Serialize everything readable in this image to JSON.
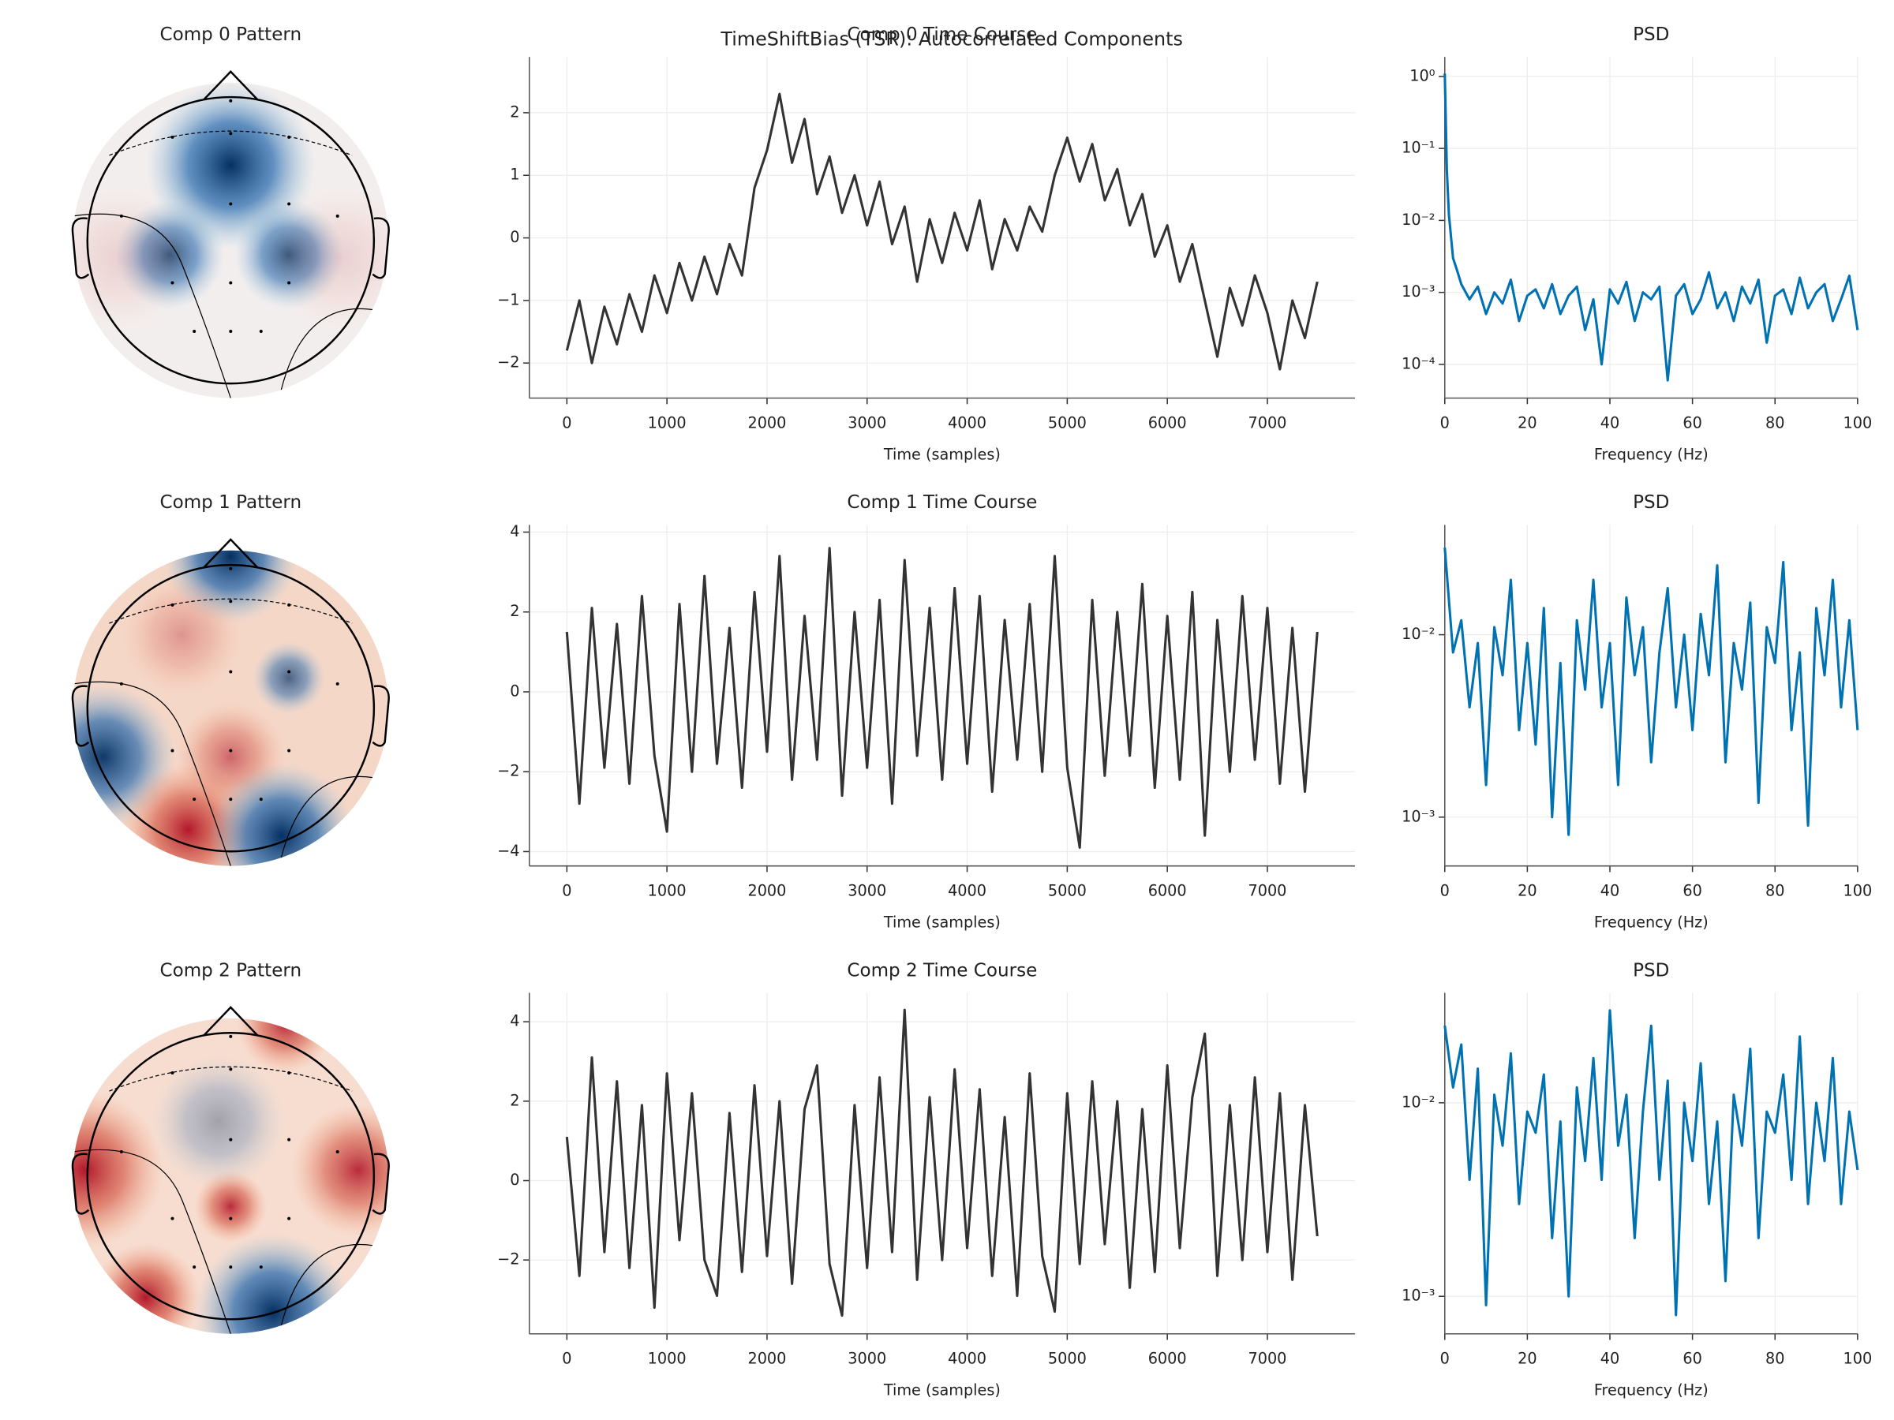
{
  "title": "TimeShiftBias (TSR): Autocorrelated Components",
  "chart_data": [
    {
      "type": "topomap",
      "title": "Comp 0 Pattern"
    },
    {
      "type": "line",
      "title": "Comp 0 Time Course",
      "xlabel": "Time (samples)",
      "color": "#333333",
      "grid": true,
      "x": [
        0,
        125,
        250,
        375,
        500,
        625,
        750,
        875,
        1000,
        1125,
        1250,
        1375,
        1500,
        1625,
        1750,
        1875,
        2000,
        2125,
        2250,
        2375,
        2500,
        2625,
        2750,
        2875,
        3000,
        3125,
        3250,
        3375,
        3500,
        3625,
        3750,
        3875,
        4000,
        4125,
        4250,
        4375,
        4500,
        4625,
        4750,
        4875,
        5000,
        5125,
        5250,
        5375,
        5500,
        5625,
        5750,
        5875,
        6000,
        6125,
        6250,
        6375,
        6500,
        6625,
        6750,
        6875,
        7000,
        7125,
        7250,
        7375,
        7499
      ],
      "values": [
        -1.8,
        -1.0,
        -2.0,
        -1.1,
        -1.7,
        -0.9,
        -1.5,
        -0.6,
        -1.2,
        -0.4,
        -1.0,
        -0.3,
        -0.9,
        -0.1,
        -0.6,
        0.8,
        1.4,
        2.3,
        1.2,
        1.9,
        0.7,
        1.3,
        0.4,
        1.0,
        0.2,
        0.9,
        -0.1,
        0.5,
        -0.7,
        0.3,
        -0.4,
        0.4,
        -0.2,
        0.6,
        -0.5,
        0.3,
        -0.2,
        0.5,
        0.1,
        1.0,
        1.6,
        0.9,
        1.5,
        0.6,
        1.1,
        0.2,
        0.7,
        -0.3,
        0.2,
        -0.7,
        -0.1,
        -1.0,
        -1.9,
        -0.8,
        -1.4,
        -0.6,
        -1.2,
        -2.1,
        -1.0,
        -1.6,
        -0.7
      ],
      "xlim": [
        -375,
        7875
      ],
      "xticks": [
        0,
        1000,
        2000,
        3000,
        4000,
        5000,
        6000,
        7000
      ],
      "ylim": [
        -2.56,
        2.89
      ],
      "yticks": [
        {
          "value": -2,
          "label": "−2"
        },
        {
          "value": -1,
          "label": "−1"
        },
        0,
        1,
        2
      ]
    },
    {
      "type": "line",
      "title": "PSD",
      "xlabel": "Frequency (Hz)",
      "color": "#0072b2",
      "grid": true,
      "yscale": "log",
      "x": [
        0,
        0.5,
        1,
        1.5,
        2,
        3,
        4,
        6,
        8,
        10,
        12,
        14,
        16,
        18,
        20,
        22,
        24,
        26,
        28,
        30,
        32,
        34,
        36,
        38,
        40,
        42,
        44,
        46,
        48,
        50,
        52,
        54,
        56,
        58,
        60,
        62,
        64,
        66,
        68,
        70,
        72,
        74,
        76,
        78,
        80,
        82,
        84,
        86,
        88,
        90,
        92,
        94,
        96,
        98,
        100
      ],
      "values": [
        1.1,
        0.05,
        0.012,
        0.006,
        0.003,
        0.002,
        0.0013,
        0.0008,
        0.0012,
        0.0005,
        0.001,
        0.0007,
        0.0015,
        0.0004,
        0.0009,
        0.0011,
        0.0006,
        0.0013,
        0.0005,
        0.0009,
        0.0012,
        0.0003,
        0.0008,
        0.0001,
        0.0011,
        0.0007,
        0.0014,
        0.0004,
        0.001,
        0.0008,
        0.0012,
        6e-05,
        0.0009,
        0.0013,
        0.0005,
        0.0008,
        0.0019,
        0.0006,
        0.001,
        0.0004,
        0.0012,
        0.0007,
        0.0015,
        0.0002,
        0.0009,
        0.0011,
        0.0005,
        0.0016,
        0.0006,
        0.001,
        0.0013,
        0.0004,
        0.0008,
        0.0017,
        0.0003
      ],
      "xlim": [
        0,
        100
      ],
      "xticks": [
        0,
        20,
        40,
        60,
        80,
        100
      ],
      "ylim": [
        3.4e-05,
        1.86
      ],
      "yticks": [
        {
          "value": 1,
          "label": "10⁰"
        },
        {
          "value": 0.1,
          "label": "10⁻¹"
        },
        {
          "value": 0.01,
          "label": "10⁻²"
        },
        {
          "value": 0.001,
          "label": "10⁻³"
        },
        {
          "value": 0.0001,
          "label": "10⁻⁴"
        }
      ]
    },
    {
      "type": "topomap",
      "title": "Comp 1 Pattern"
    },
    {
      "type": "line",
      "title": "Comp 1 Time Course",
      "xlabel": "Time (samples)",
      "color": "#333333",
      "grid": true,
      "x": [
        0,
        125,
        250,
        375,
        500,
        625,
        750,
        875,
        1000,
        1125,
        1250,
        1375,
        1500,
        1625,
        1750,
        1875,
        2000,
        2125,
        2250,
        2375,
        2500,
        2625,
        2750,
        2875,
        3000,
        3125,
        3250,
        3375,
        3500,
        3625,
        3750,
        3875,
        4000,
        4125,
        4250,
        4375,
        4500,
        4625,
        4750,
        4875,
        5000,
        5125,
        5250,
        5375,
        5500,
        5625,
        5750,
        5875,
        6000,
        6125,
        6250,
        6375,
        6500,
        6625,
        6750,
        6875,
        7000,
        7125,
        7250,
        7375,
        7499
      ],
      "values": [
        1.5,
        -2.8,
        2.1,
        -1.9,
        1.7,
        -2.3,
        2.4,
        -1.6,
        -3.5,
        2.2,
        -2.0,
        2.9,
        -1.8,
        1.6,
        -2.4,
        2.5,
        -1.5,
        3.4,
        -2.2,
        1.9,
        -1.7,
        3.6,
        -2.6,
        2.0,
        -1.9,
        2.3,
        -2.8,
        3.3,
        -1.6,
        2.1,
        -2.2,
        2.6,
        -1.8,
        2.4,
        -2.5,
        1.8,
        -1.7,
        2.2,
        -2.0,
        3.4,
        -1.9,
        -3.9,
        2.3,
        -2.1,
        2.0,
        -1.6,
        2.7,
        -2.4,
        1.9,
        -2.2,
        2.5,
        -3.6,
        1.8,
        -2.0,
        2.4,
        -1.7,
        2.1,
        -2.3,
        1.6,
        -2.5,
        1.5
      ],
      "xlim": [
        -375,
        7875
      ],
      "xticks": [
        0,
        1000,
        2000,
        3000,
        4000,
        5000,
        6000,
        7000
      ],
      "ylim": [
        -4.36,
        4.18
      ],
      "yticks": [
        {
          "value": -4,
          "label": "−4"
        },
        {
          "value": -2,
          "label": "−2"
        },
        0,
        2,
        4
      ]
    },
    {
      "type": "line",
      "title": "PSD",
      "xlabel": "Frequency (Hz)",
      "color": "#0072b2",
      "grid": true,
      "yscale": "log",
      "x": [
        0,
        2,
        4,
        6,
        8,
        10,
        12,
        14,
        16,
        18,
        20,
        22,
        24,
        26,
        28,
        30,
        32,
        34,
        36,
        38,
        40,
        42,
        44,
        46,
        48,
        50,
        52,
        54,
        56,
        58,
        60,
        62,
        64,
        66,
        68,
        70,
        72,
        74,
        76,
        78,
        80,
        82,
        84,
        86,
        88,
        90,
        92,
        94,
        96,
        98,
        100
      ],
      "values": [
        0.03,
        0.008,
        0.012,
        0.004,
        0.009,
        0.0015,
        0.011,
        0.006,
        0.02,
        0.003,
        0.009,
        0.0025,
        0.014,
        0.001,
        0.007,
        0.0008,
        0.012,
        0.005,
        0.02,
        0.004,
        0.009,
        0.0015,
        0.016,
        0.006,
        0.011,
        0.002,
        0.008,
        0.018,
        0.004,
        0.01,
        0.003,
        0.013,
        0.006,
        0.024,
        0.002,
        0.009,
        0.005,
        0.015,
        0.0012,
        0.011,
        0.007,
        0.025,
        0.003,
        0.008,
        0.0009,
        0.014,
        0.006,
        0.02,
        0.004,
        0.012,
        0.003
      ],
      "xlim": [
        0,
        100
      ],
      "xticks": [
        0,
        20,
        40,
        60,
        80,
        100
      ],
      "ylim": [
        0.00054,
        0.04
      ],
      "yticks": [
        {
          "value": 0.01,
          "label": "10⁻²"
        },
        {
          "value": 0.001,
          "label": "10⁻³"
        }
      ]
    },
    {
      "type": "topomap",
      "title": "Comp 2 Pattern"
    },
    {
      "type": "line",
      "title": "Comp 2 Time Course",
      "xlabel": "Time (samples)",
      "color": "#333333",
      "grid": true,
      "x": [
        0,
        125,
        250,
        375,
        500,
        625,
        750,
        875,
        1000,
        1125,
        1250,
        1375,
        1500,
        1625,
        1750,
        1875,
        2000,
        2125,
        2250,
        2375,
        2500,
        2625,
        2750,
        2875,
        3000,
        3125,
        3250,
        3375,
        3500,
        3625,
        3750,
        3875,
        4000,
        4125,
        4250,
        4375,
        4500,
        4625,
        4750,
        4875,
        5000,
        5125,
        5250,
        5375,
        5500,
        5625,
        5750,
        5875,
        6000,
        6125,
        6250,
        6375,
        6500,
        6625,
        6750,
        6875,
        7000,
        7125,
        7250,
        7375,
        7499
      ],
      "values": [
        1.1,
        -2.4,
        3.1,
        -1.8,
        2.5,
        -2.2,
        1.9,
        -3.2,
        2.7,
        -1.5,
        2.2,
        -2.0,
        -2.9,
        1.7,
        -2.3,
        2.4,
        -1.9,
        2.0,
        -2.6,
        1.8,
        2.9,
        -2.1,
        -3.4,
        1.9,
        -2.2,
        2.6,
        -1.8,
        4.3,
        -2.5,
        2.1,
        -2.0,
        2.8,
        -1.7,
        2.3,
        -2.4,
        1.6,
        -2.9,
        2.7,
        -1.9,
        -3.3,
        2.2,
        -2.1,
        2.5,
        -1.6,
        2.0,
        -2.7,
        1.8,
        -2.3,
        2.9,
        -1.7,
        2.1,
        3.7,
        -2.4,
        1.9,
        -2.0,
        2.6,
        -1.8,
        2.2,
        -2.5,
        1.9,
        -1.4
      ],
      "xlim": [
        -375,
        7875
      ],
      "xticks": [
        0,
        1000,
        2000,
        3000,
        4000,
        5000,
        6000,
        7000
      ],
      "ylim": [
        -3.86,
        4.73
      ],
      "yticks": [
        {
          "value": -2,
          "label": "−2"
        },
        0,
        2,
        4
      ]
    },
    {
      "type": "line",
      "title": "PSD",
      "xlabel": "Frequency (Hz)",
      "color": "#0072b2",
      "grid": true,
      "yscale": "log",
      "x": [
        0,
        2,
        4,
        6,
        8,
        10,
        12,
        14,
        16,
        18,
        20,
        22,
        24,
        26,
        28,
        30,
        32,
        34,
        36,
        38,
        40,
        42,
        44,
        46,
        48,
        50,
        52,
        54,
        56,
        58,
        60,
        62,
        64,
        66,
        68,
        70,
        72,
        74,
        76,
        78,
        80,
        82,
        84,
        86,
        88,
        90,
        92,
        94,
        96,
        98,
        100
      ],
      "values": [
        0.025,
        0.012,
        0.02,
        0.004,
        0.015,
        0.0009,
        0.011,
        0.006,
        0.018,
        0.003,
        0.009,
        0.007,
        0.014,
        0.002,
        0.008,
        0.001,
        0.012,
        0.005,
        0.017,
        0.004,
        0.03,
        0.006,
        0.011,
        0.002,
        0.009,
        0.025,
        0.004,
        0.013,
        0.0008,
        0.01,
        0.005,
        0.016,
        0.003,
        0.008,
        0.0012,
        0.011,
        0.006,
        0.019,
        0.002,
        0.009,
        0.007,
        0.014,
        0.004,
        0.022,
        0.003,
        0.01,
        0.005,
        0.017,
        0.003,
        0.009,
        0.0045
      ],
      "xlim": [
        0,
        100
      ],
      "xticks": [
        0,
        20,
        40,
        60,
        80,
        100
      ],
      "ylim": [
        0.00064,
        0.037
      ],
      "yticks": [
        {
          "value": 0.01,
          "label": "10⁻²"
        },
        {
          "value": 0.001,
          "label": "10⁻³"
        }
      ]
    }
  ]
}
